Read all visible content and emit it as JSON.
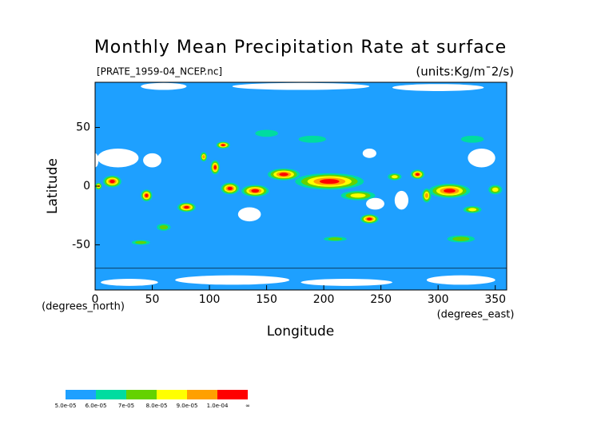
{
  "chart_data": {
    "type": "contour-map",
    "title": "Monthly Mean Precipitation Rate at surface",
    "subtitle": "[PRATE_1959-04_NCEP.nc]",
    "units": "(units:Kg/m¯2/s)",
    "x_label": "Longitude",
    "y_label": "Latitude",
    "x_unit": "(degrees_east)",
    "y_unit": "(degrees_north)",
    "xlim": [
      0,
      360
    ],
    "ylim": [
      -88.5,
      88.5
    ],
    "xticks": [
      0,
      50,
      100,
      150,
      200,
      250,
      300,
      350
    ],
    "yticks": [
      -50,
      0,
      50
    ],
    "colorbar": {
      "colors": [
        "#1ea0ff",
        "#00dca0",
        "#64d200",
        "#ffff00",
        "#ffa000",
        "#ff0000"
      ],
      "labels": [
        "5.0e-05",
        "6.0e-05",
        "7e-05",
        "8.0e-05",
        "9.0e-05",
        "1.0e-04",
        "∞"
      ]
    }
  }
}
